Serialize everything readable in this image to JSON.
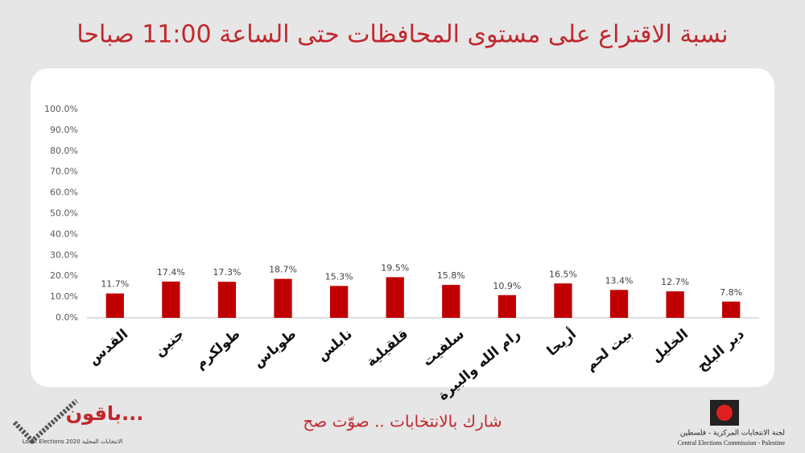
{
  "chart_data": {
    "type": "bar",
    "title": "نسبة الاقتراع على مستوى المحافظات حتى الساعة 11:00 صباحا",
    "categories": [
      "القدس",
      "جنين",
      "طولكرم",
      "طوباس",
      "نابلس",
      "قلقيلية",
      "سلفيت",
      "رام الله والبيرة",
      "أريحا",
      "بيت لحم",
      "الخليل",
      "دير البلح"
    ],
    "values": [
      11.7,
      17.4,
      17.3,
      18.7,
      15.3,
      19.5,
      15.8,
      10.9,
      16.5,
      13.4,
      12.7,
      7.8
    ],
    "value_labels": [
      "11.7%",
      "17.4%",
      "17.3%",
      "18.7%",
      "15.3%",
      "19.5%",
      "15.8%",
      "10.9%",
      "16.5%",
      "13.4%",
      "12.7%",
      "7.8%"
    ],
    "color": "#c00000",
    "ylim": [
      0,
      100
    ],
    "yticks": [
      {
        "value": 0,
        "label": "0.0%"
      },
      {
        "value": 10,
        "label": "10.0%"
      },
      {
        "value": 20,
        "label": "20.0%"
      },
      {
        "value": 30,
        "label": "30.0%"
      },
      {
        "value": 40,
        "label": "40.0%"
      },
      {
        "value": 50,
        "label": "50.0%"
      },
      {
        "value": 60,
        "label": "60.0%"
      },
      {
        "value": 70,
        "label": "70.0%"
      },
      {
        "value": 80,
        "label": "80.0%"
      },
      {
        "value": 90,
        "label": "90.0%"
      },
      {
        "value": 100,
        "label": "100.0%"
      }
    ],
    "grid": false
  },
  "footer": {
    "slogan": "شارك بالانتخابات .. صوّت صح",
    "left_logo": {
      "title": "باقون...",
      "subtitle": "Local Elections 2020 الانتخابات المحلية"
    },
    "right_logo": {
      "arabic": "لجنة الانتخابات المركزية - فلسطين",
      "english": "Central Elections Commission - Palestine"
    }
  }
}
